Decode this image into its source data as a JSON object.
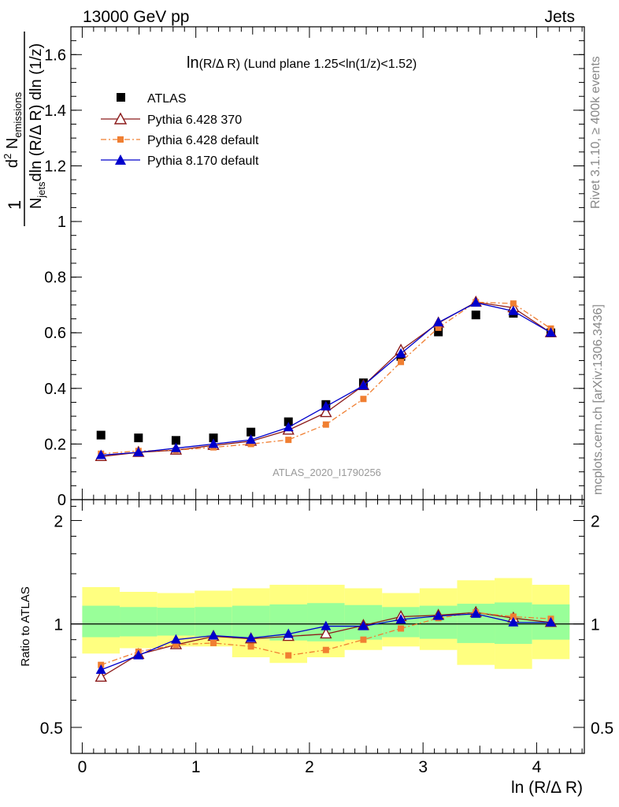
{
  "header": {
    "left": "13000 GeV pp",
    "right": "Jets"
  },
  "side_labels": {
    "rivet": "Rivet 3.1.10, ≥ 400k events",
    "mcplots": "mcplots.cern.ch [arXiv:1306.3436]"
  },
  "plot_title": {
    "main": "ln",
    "sub": "(R/Δ R)",
    "rest": " (Lund plane 1.25<ln(1/z)<1.52)"
  },
  "watermark": "ATLAS_2020_I1790256",
  "legend": {
    "items": [
      {
        "label": "ATLAS",
        "color": "#000000",
        "marker": "square-filled",
        "line": "none"
      },
      {
        "label": "Pythia 6.428 370",
        "color": "#8b1a1a",
        "marker": "triangle-open",
        "line": "solid"
      },
      {
        "label": "Pythia 6.428 default",
        "color": "#f07f32",
        "marker": "square-filled-small",
        "line": "dashdot"
      },
      {
        "label": "Pythia 8.170 default",
        "color": "#0000cc",
        "marker": "triangle-filled",
        "line": "solid"
      }
    ]
  },
  "axes": {
    "main_ylabel_parts": {
      "one": "1",
      "num_d": "d",
      "num_sup": "2",
      "num_n": " N",
      "num_sub": "emissions",
      "den_n": "N",
      "den_sub": "jets",
      "den_rest": "dln (R/Δ R) dln (1/z)"
    },
    "ratio_ylabel": "Ratio to ATLAS",
    "xlabel": "ln (R/Δ R)",
    "main_yticks": [
      "0",
      "0.2",
      "0.4",
      "0.6",
      "0.8",
      "1",
      "1.2",
      "1.4",
      "1.6"
    ],
    "ratio_yticks": [
      "0.5",
      "1",
      "2"
    ],
    "xticks": [
      "0",
      "1",
      "2",
      "3",
      "4"
    ]
  },
  "chart_data": [
    {
      "type": "scatter",
      "panel": "main",
      "xlim": [
        -0.1,
        4.42
      ],
      "ylim": [
        0,
        1.7
      ],
      "x": [
        0.165,
        0.495,
        0.825,
        1.155,
        1.485,
        1.815,
        2.145,
        2.475,
        2.805,
        3.135,
        3.465,
        3.795,
        4.125
      ],
      "series": [
        {
          "name": "ATLAS",
          "values": [
            0.232,
            0.222,
            0.213,
            0.222,
            0.243,
            0.28,
            0.342,
            0.42,
            0.515,
            0.603,
            0.664,
            0.67,
            0.6
          ]
        },
        {
          "name": "Pythia 6.428 370",
          "values": [
            0.155,
            0.17,
            0.178,
            0.195,
            0.21,
            0.25,
            0.313,
            0.41,
            0.537,
            0.635,
            0.71,
            0.69,
            0.6
          ]
        },
        {
          "name": "Pythia 6.428 default",
          "values": [
            0.165,
            0.175,
            0.178,
            0.188,
            0.2,
            0.215,
            0.27,
            0.362,
            0.495,
            0.618,
            0.71,
            0.705,
            0.615
          ]
        },
        {
          "name": "Pythia 8.170 default",
          "values": [
            0.16,
            0.17,
            0.185,
            0.2,
            0.215,
            0.26,
            0.335,
            0.41,
            0.525,
            0.637,
            0.708,
            0.678,
            0.6
          ]
        }
      ]
    },
    {
      "type": "line",
      "panel": "ratio",
      "ylim": [
        0.42,
        2.3
      ],
      "yscale": "log",
      "x": [
        0.165,
        0.495,
        0.825,
        1.155,
        1.485,
        1.815,
        2.145,
        2.475,
        2.805,
        3.135,
        3.465,
        3.795,
        4.125
      ],
      "bands": {
        "edges": [
          0.0,
          0.33,
          0.66,
          0.99,
          1.32,
          1.65,
          1.98,
          2.31,
          2.64,
          2.97,
          3.3,
          3.63,
          3.96,
          4.29
        ],
        "yellow_low": [
          0.82,
          0.85,
          0.86,
          0.86,
          0.8,
          0.77,
          0.8,
          0.84,
          0.86,
          0.84,
          0.76,
          0.74,
          0.79
        ],
        "yellow_high": [
          1.28,
          1.24,
          1.23,
          1.25,
          1.27,
          1.3,
          1.3,
          1.27,
          1.23,
          1.27,
          1.34,
          1.36,
          1.3
        ],
        "green_low": [
          0.915,
          0.92,
          0.925,
          0.92,
          0.905,
          0.895,
          0.89,
          0.9,
          0.915,
          0.905,
          0.88,
          0.875,
          0.9
        ],
        "green_high": [
          1.13,
          1.12,
          1.115,
          1.12,
          1.13,
          1.14,
          1.15,
          1.135,
          1.12,
          1.13,
          1.145,
          1.155,
          1.14
        ]
      },
      "series": [
        {
          "name": "Pythia 6.428 370",
          "values": [
            0.7,
            0.815,
            0.87,
            0.92,
            0.905,
            0.92,
            0.935,
            0.99,
            1.05,
            1.06,
            1.08,
            1.04,
            1.01
          ]
        },
        {
          "name": "Pythia 6.428 default",
          "values": [
            0.76,
            0.83,
            0.87,
            0.88,
            0.86,
            0.81,
            0.84,
            0.9,
            0.97,
            1.04,
            1.08,
            1.05,
            1.035
          ]
        },
        {
          "name": "Pythia 8.170 default",
          "values": [
            0.735,
            0.81,
            0.9,
            0.925,
            0.91,
            0.935,
            0.985,
            0.985,
            1.03,
            1.055,
            1.07,
            1.01,
            1.01
          ]
        }
      ]
    }
  ]
}
